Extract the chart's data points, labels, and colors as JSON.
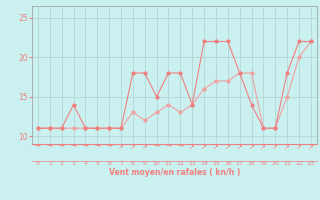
{
  "title": "",
  "xlabel": "Vent moyen/en rafales ( kn/h )",
  "bg_color": "#caf0f0",
  "line_color": "#f08080",
  "line_color2": "#f0a0a0",
  "grid_color": "#b0d0d0",
  "xlim": [
    -0.5,
    23.5
  ],
  "ylim": [
    9.0,
    26.5
  ],
  "yticks": [
    10,
    15,
    20,
    25
  ],
  "xticks": [
    0,
    1,
    2,
    3,
    4,
    5,
    6,
    7,
    8,
    9,
    10,
    11,
    12,
    13,
    14,
    15,
    16,
    17,
    18,
    19,
    20,
    21,
    22,
    23
  ],
  "x": [
    0,
    1,
    2,
    3,
    4,
    5,
    6,
    7,
    8,
    9,
    10,
    11,
    12,
    13,
    14,
    15,
    16,
    17,
    18,
    19,
    20,
    21,
    22,
    23
  ],
  "y_gusts": [
    11,
    11,
    11,
    14,
    11,
    11,
    11,
    11,
    18,
    18,
    15,
    18,
    18,
    14,
    22,
    22,
    22,
    18,
    14,
    11,
    11,
    18,
    22,
    22
  ],
  "y_mean": [
    11,
    11,
    11,
    11,
    11,
    11,
    11,
    11,
    13,
    12,
    13,
    14,
    13,
    14,
    16,
    17,
    17,
    18,
    18,
    11,
    11,
    15,
    20,
    22
  ],
  "arrow_dirs": [
    0,
    0,
    0,
    0,
    0,
    0,
    0,
    45,
    45,
    45,
    0,
    0,
    0,
    45,
    45,
    45,
    45,
    45,
    45,
    45,
    45,
    45,
    45,
    45
  ]
}
